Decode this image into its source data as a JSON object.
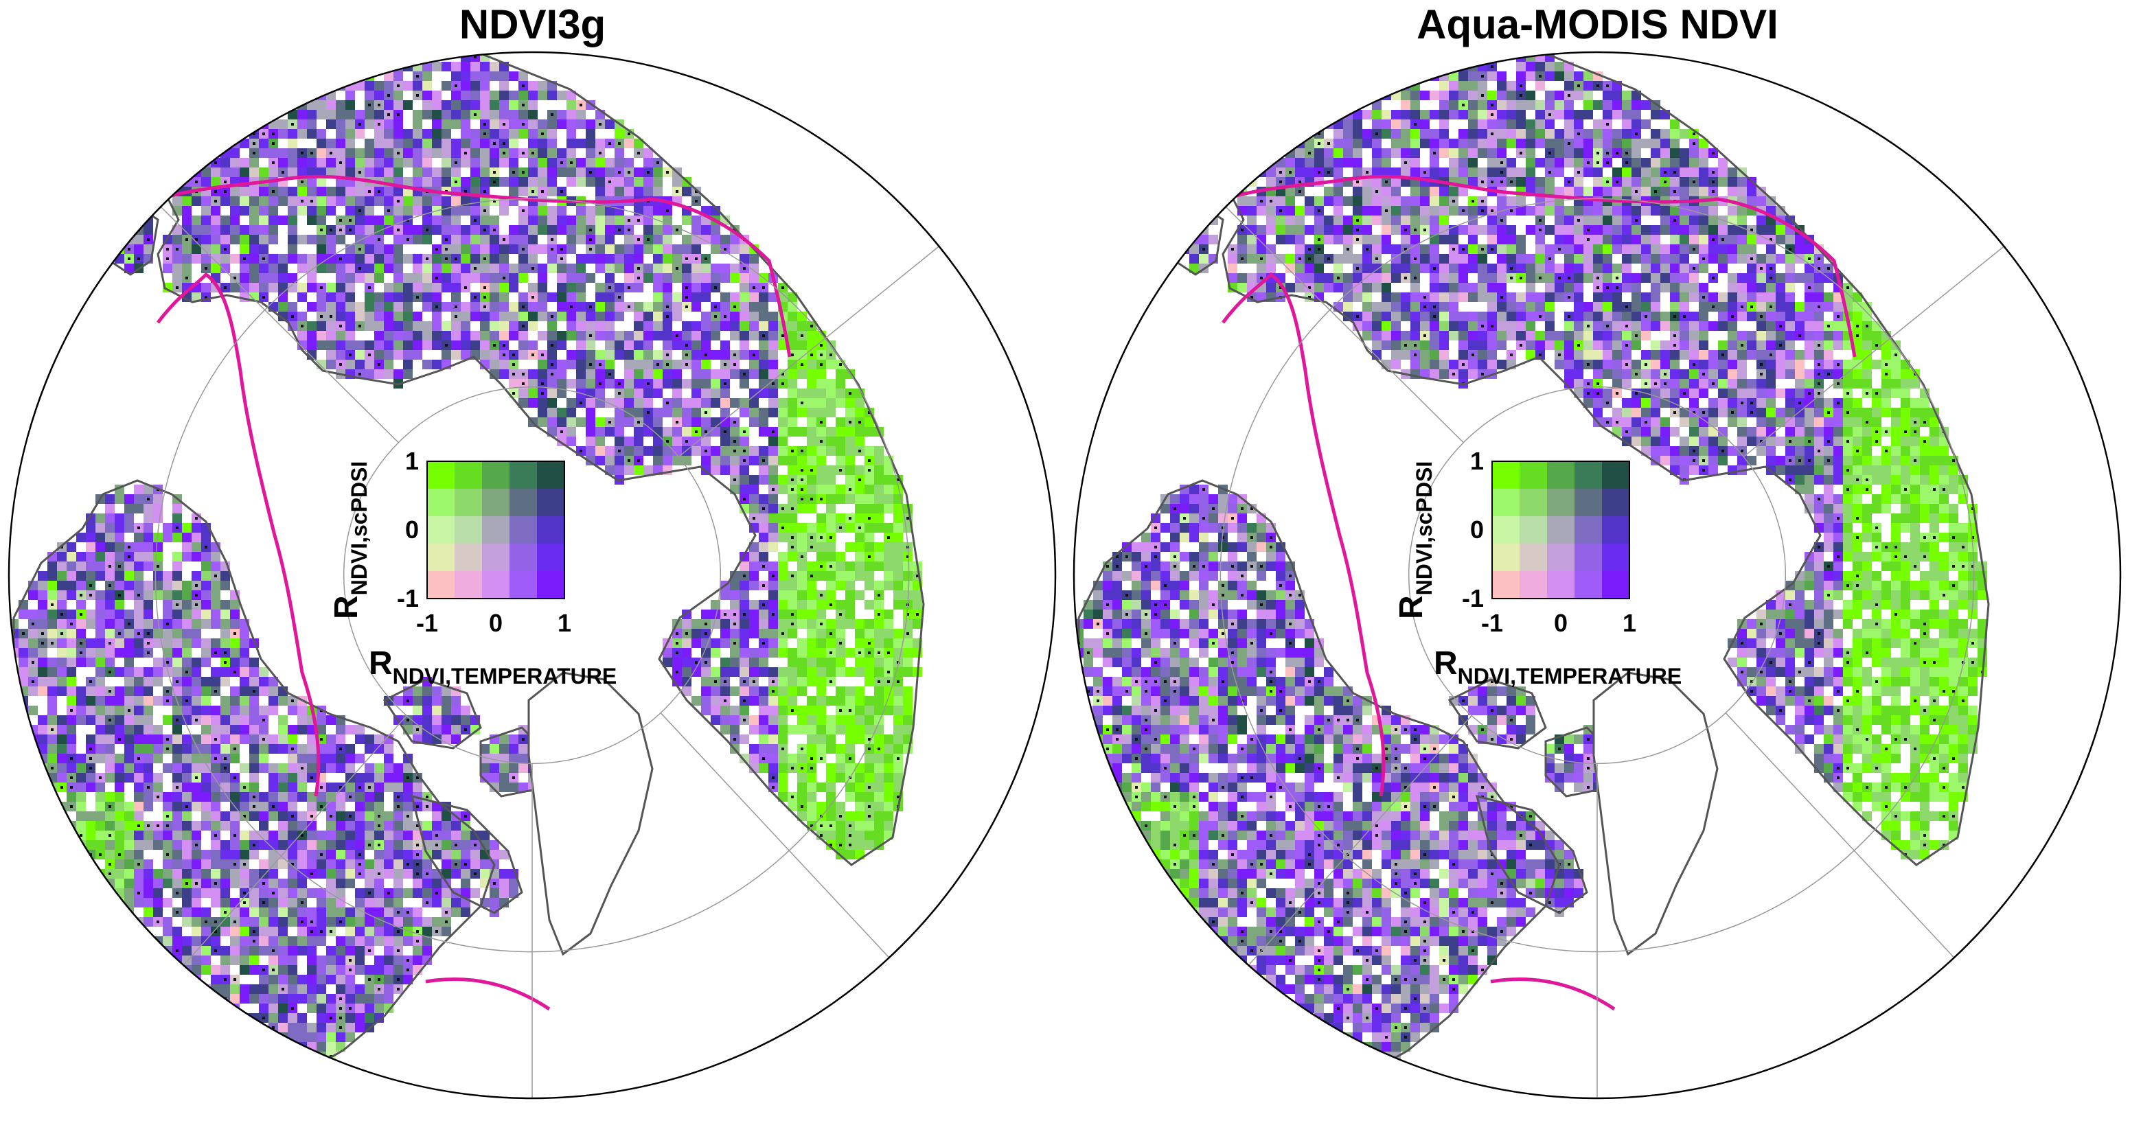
{
  "figure": {
    "panels": [
      {
        "title": "NDVI3g"
      },
      {
        "title": "Aqua-MODIS NDVI"
      }
    ],
    "legend": {
      "type": "bivariate color key",
      "x_axis_label_main": "R",
      "x_axis_label_sub": "NDVI,TEMPERATURE",
      "y_axis_label_main": "R",
      "y_axis_label_sub": "NDVI,scPDSI",
      "x_ticks": [
        "-1",
        "0",
        "1"
      ],
      "y_ticks": [
        "1",
        "0",
        "-1"
      ],
      "grid_rows_top_to_bottom": [
        [
          "#76ff00",
          "#66dc22",
          "#56a94a",
          "#3a7c58",
          "#1f4f45"
        ],
        [
          "#9cf86a",
          "#8ed96b",
          "#7ea77e",
          "#5e6f84",
          "#3e3f8a"
        ],
        [
          "#c8f5a4",
          "#b9dda8",
          "#a8a8b8",
          "#7d6cc2",
          "#5334c8"
        ],
        [
          "#e3edb0",
          "#d7c9c6",
          "#c3a0dc",
          "#9462e6",
          "#6a2cef"
        ],
        [
          "#fcc0c2",
          "#efacde",
          "#d48ff2",
          "#a05cf8",
          "#7a1cfc"
        ]
      ]
    },
    "map_colors": {
      "temperature_positive": "#6a2cef",
      "drought_positive": "#76ff00",
      "both_positive": "#1f4f45",
      "treeline_contour": "#e0179a",
      "coastline": "#555555",
      "graticule": "#999999"
    }
  }
}
